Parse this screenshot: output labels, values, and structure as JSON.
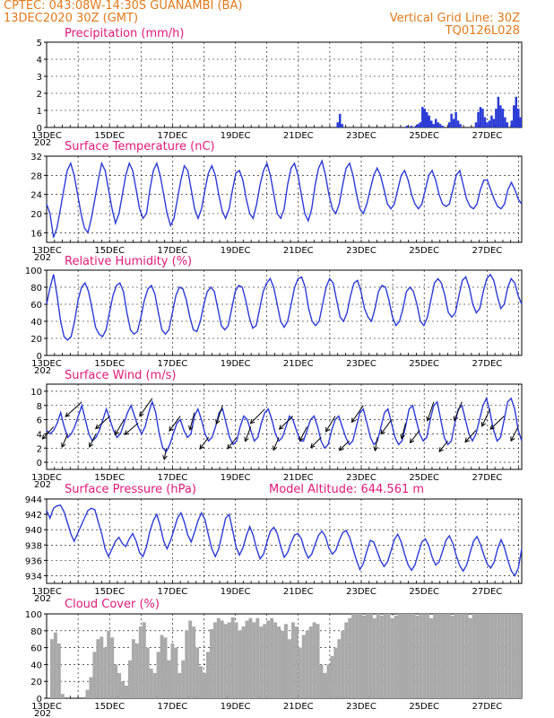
{
  "header": {
    "line1_left": "CPTEC:   043:08W-14:30S   GUANAMBI (BA)",
    "line2_left": "13DEC2020 30Z (GMT)",
    "line1_right": "Vertical Grid Line: 30Z",
    "line2_right": "TQ0126L028"
  },
  "colors": {
    "header": "#e07a1a",
    "title": "#e0197a",
    "line": "#2b3bd6",
    "cloud": "#a9a9a9",
    "wind": "#000000"
  },
  "x_axis": {
    "labels": [
      "13DEC",
      "15DEC",
      "17DEC",
      "19DEC",
      "21DEC",
      "23DEC",
      "25DEC",
      "27DEC"
    ],
    "sub_label": "202"
  },
  "chart_data": [
    {
      "name": "precip",
      "type": "bar",
      "title": "Precipitation (mm/h)",
      "ylim": [
        0,
        5
      ],
      "yticks": [
        0,
        1,
        2,
        3,
        4,
        5
      ],
      "values": [
        0,
        0,
        0,
        0,
        0,
        0,
        0,
        0,
        0,
        0,
        0,
        0,
        0,
        0,
        0,
        0,
        0,
        0,
        0,
        0,
        0,
        0,
        0,
        0,
        0,
        0,
        0,
        0,
        0,
        0,
        0,
        0,
        0,
        0,
        0,
        0,
        0,
        0,
        0,
        0,
        0,
        0,
        0,
        0,
        0,
        0,
        0,
        0,
        0,
        0,
        0,
        0,
        0,
        0,
        0,
        0,
        0,
        0,
        0,
        0,
        0,
        0,
        0,
        0,
        0,
        0,
        0,
        0,
        0,
        0,
        0,
        0,
        0,
        0,
        0,
        0,
        0,
        0,
        0,
        0,
        0,
        0,
        0,
        0,
        0,
        0,
        0,
        0,
        0,
        0,
        0,
        0,
        0,
        0,
        0,
        0,
        0,
        0,
        0,
        0,
        0,
        0,
        0,
        0,
        0,
        0,
        0,
        0,
        0,
        0,
        0,
        0,
        0,
        0,
        0,
        0,
        0,
        0,
        0,
        0,
        0,
        0,
        0,
        0,
        0,
        0,
        0,
        0,
        0,
        0,
        0.3,
        0.8,
        0.2,
        0,
        0,
        0,
        0,
        0,
        0,
        0,
        0,
        0,
        0,
        0,
        0,
        0,
        0,
        0,
        0,
        0,
        0,
        0,
        0,
        0,
        0,
        0,
        0,
        0,
        0,
        0,
        0,
        0.1,
        0,
        0.1,
        0,
        0.1,
        0.2,
        0.3,
        1.2,
        1.1,
        0.9,
        0.7,
        0.4,
        0.2,
        0.5,
        0.3,
        0.2,
        0.1,
        0,
        0,
        0.3,
        0.8,
        0.5,
        0.9,
        0.4,
        0.2,
        0,
        0,
        0,
        0,
        0,
        0,
        0.3,
        0.9,
        1.2,
        1.1,
        0.6,
        0.3,
        0.4,
        0.7,
        0.5,
        1.1,
        1.8,
        1.3,
        1.1,
        0.6,
        0.3,
        0,
        0.4,
        1.3,
        1.8,
        1.1,
        0.6
      ]
    },
    {
      "name": "temperature",
      "type": "line",
      "title": "Surface Temperature (nC)",
      "ylim": [
        14,
        32
      ],
      "yticks": [
        16,
        20,
        24,
        28,
        32
      ],
      "values": [
        22,
        20,
        15,
        17,
        21,
        25,
        29,
        30.5,
        28,
        24,
        20,
        17,
        16,
        19,
        23,
        27,
        30.5,
        29,
        25,
        21,
        18,
        20,
        24,
        28,
        30.5,
        29,
        25,
        21,
        19,
        20,
        25,
        29,
        30.5,
        28,
        24,
        20,
        17.5,
        19,
        23,
        27,
        30,
        29,
        25,
        21,
        19,
        21,
        25,
        28.5,
        30,
        28,
        24,
        20.5,
        19,
        21,
        25,
        28.5,
        29,
        27,
        23,
        20,
        19,
        22,
        26,
        29,
        30.5,
        28,
        24,
        20,
        19,
        21,
        26,
        29.5,
        30.5,
        28,
        24,
        20,
        18.5,
        21,
        26,
        29.5,
        31,
        28,
        24,
        21,
        20,
        22,
        26,
        29.5,
        30.5,
        28,
        24,
        21,
        20,
        22,
        25,
        28,
        29.5,
        28,
        25,
        22,
        21,
        22,
        25,
        28,
        29,
        27,
        24,
        22,
        21,
        22,
        25,
        28,
        29,
        27,
        24,
        22,
        21.5,
        22,
        25,
        28,
        29,
        26,
        23,
        21.5,
        21,
        22,
        25,
        27,
        27,
        25,
        23,
        21.5,
        21,
        22,
        25,
        26.5,
        25,
        23,
        22
      ]
    },
    {
      "name": "humidity",
      "type": "line",
      "title": "Relative Humidity (%)",
      "ylim": [
        0,
        100
      ],
      "yticks": [
        0,
        20,
        40,
        60,
        80,
        100
      ],
      "values": [
        60,
        80,
        95,
        70,
        40,
        22,
        18,
        22,
        40,
        65,
        80,
        85,
        75,
        55,
        33,
        25,
        22,
        30,
        50,
        70,
        82,
        85,
        75,
        50,
        30,
        25,
        28,
        45,
        65,
        78,
        82,
        72,
        50,
        30,
        25,
        30,
        50,
        70,
        80,
        78,
        65,
        45,
        30,
        28,
        40,
        60,
        75,
        80,
        75,
        55,
        35,
        30,
        35,
        55,
        75,
        82,
        80,
        65,
        45,
        32,
        35,
        55,
        75,
        85,
        90,
        80,
        60,
        40,
        33,
        40,
        60,
        80,
        90,
        92,
        80,
        55,
        40,
        35,
        40,
        60,
        80,
        90,
        85,
        65,
        45,
        40,
        50,
        70,
        85,
        88,
        75,
        55,
        45,
        40,
        55,
        75,
        82,
        80,
        65,
        45,
        35,
        40,
        55,
        75,
        80,
        75,
        60,
        40,
        35,
        45,
        65,
        85,
        90,
        85,
        70,
        50,
        45,
        50,
        70,
        88,
        92,
        80,
        60,
        50,
        55,
        75,
        90,
        95,
        88,
        70,
        55,
        60,
        80,
        90,
        85,
        70,
        60
      ]
    },
    {
      "name": "wind",
      "type": "line",
      "title": "Surface Wind (m/s)",
      "ylim": [
        -1,
        11
      ],
      "yticks": [
        0,
        2,
        4,
        6,
        8,
        10
      ],
      "values": [
        4.5,
        4,
        4.5,
        5.5,
        7,
        5,
        3.5,
        4,
        5,
        6.5,
        8,
        6,
        4,
        3,
        3.5,
        4.5,
        6,
        7.5,
        6,
        4.5,
        3.5,
        4,
        5.5,
        7,
        8,
        6.5,
        5,
        4,
        5,
        7,
        8.5,
        7,
        4,
        2,
        1.5,
        2.5,
        4,
        5.5,
        6,
        4.5,
        3.5,
        4,
        6.5,
        7.5,
        6,
        4,
        3,
        3.5,
        5,
        7,
        7.5,
        5.5,
        3.5,
        2.5,
        3,
        5,
        6.5,
        6,
        4.5,
        3,
        3.5,
        5.5,
        7,
        7.5,
        6,
        4,
        3,
        3.5,
        5,
        6.5,
        6,
        4.5,
        3,
        3,
        4.5,
        6,
        6.5,
        5,
        3,
        2,
        2.5,
        4.5,
        6,
        6.5,
        5,
        3.5,
        2.5,
        3,
        5,
        7,
        7.5,
        5.5,
        3.5,
        2.5,
        3,
        5,
        7,
        7.5,
        5.5,
        3.5,
        2.5,
        3,
        5,
        7.5,
        8,
        6,
        4,
        3,
        3.5,
        6,
        8,
        8.5,
        6,
        3.5,
        2.5,
        3,
        5.5,
        7.5,
        8,
        6,
        4,
        3,
        4,
        6,
        8,
        9,
        7,
        4.5,
        3,
        3.5,
        6,
        8.5,
        9,
        7.5,
        4.5,
        3
      ],
      "arrow_interval": 4
    },
    {
      "name": "pressure",
      "type": "line",
      "title": "Surface Pressure (hPa)",
      "annotation": "Model Altitude: 644.561  m",
      "ylim": [
        933,
        944
      ],
      "yticks": [
        934,
        936,
        938,
        940,
        942,
        944
      ],
      "values": [
        942.5,
        941.5,
        942.8,
        943.1,
        943.2,
        942.4,
        941,
        939.5,
        938.5,
        939.5,
        940.5,
        941.5,
        942.5,
        942.8,
        942.6,
        941,
        939.5,
        937.5,
        936.5,
        937.5,
        938.5,
        939,
        938.2,
        937.8,
        938.8,
        939.5,
        938.5,
        937,
        936.5,
        937.8,
        939.8,
        941.2,
        942,
        940.5,
        938.5,
        937.5,
        938.6,
        940,
        941.5,
        942.2,
        941,
        939.3,
        938.4,
        939.7,
        941.2,
        942.2,
        941.3,
        939.3,
        937.5,
        936.5,
        937.5,
        939.5,
        941.5,
        942,
        940,
        937.8,
        936.7,
        937.6,
        939.2,
        940.4,
        939.3,
        937.5,
        936.2,
        936.8,
        938.4,
        939.8,
        940.3,
        939.5,
        937.8,
        936.4,
        937,
        938.3,
        939.3,
        939.5,
        938.8,
        937.3,
        936.3,
        936.8,
        938.1,
        939.3,
        939.8,
        939.1,
        937.6,
        936.8,
        937.3,
        938.6,
        939.6,
        939.9,
        939,
        937.5,
        936,
        934.8,
        935.6,
        937.2,
        938.6,
        938.4,
        937.2,
        936,
        935.2,
        935.8,
        937.2,
        938.7,
        939.4,
        938.4,
        936.8,
        935.4,
        934.7,
        935.4,
        937,
        938.4,
        938.8,
        937.9,
        936.4,
        935.4,
        935.8,
        937.2,
        938.6,
        939.2,
        938.2,
        936.6,
        935.3,
        934.6,
        935.4,
        937,
        938.5,
        939.1,
        938.1,
        936.7,
        935.5,
        935,
        935.8,
        937.5,
        938.7,
        937.6,
        936,
        934.6,
        934,
        935,
        937.5
      ]
    },
    {
      "name": "cloud",
      "type": "bar",
      "title": "Cloud Cover (%)",
      "ylim": [
        0,
        100
      ],
      "yticks": [
        0,
        20,
        40,
        60,
        80,
        100
      ],
      "values": [
        0,
        70,
        78,
        65,
        5,
        0,
        0,
        0,
        0,
        0,
        0,
        10,
        25,
        55,
        70,
        73,
        60,
        80,
        72,
        40,
        30,
        20,
        15,
        45,
        70,
        65,
        85,
        90,
        60,
        35,
        30,
        55,
        75,
        72,
        45,
        65,
        60,
        30,
        45,
        80,
        92,
        85,
        60,
        38,
        30,
        55,
        82,
        90,
        95,
        92,
        88,
        90,
        96,
        90,
        80,
        85,
        92,
        95,
        90,
        95,
        85,
        88,
        92,
        95,
        90,
        85,
        80,
        88,
        70,
        90,
        85,
        60,
        75,
        80,
        85,
        90,
        88,
        40,
        30,
        40,
        50,
        60,
        70,
        80,
        90,
        95,
        100,
        100,
        100,
        98,
        100,
        100,
        95,
        100,
        98,
        100,
        100,
        95,
        98,
        100,
        100,
        100,
        100,
        100,
        98,
        100,
        100,
        100,
        95,
        100,
        100,
        100,
        100,
        100,
        98,
        100,
        100,
        100,
        100,
        95,
        100,
        100,
        100,
        100,
        100,
        100,
        100,
        100,
        100,
        100,
        100,
        100,
        100,
        100
      ]
    }
  ]
}
